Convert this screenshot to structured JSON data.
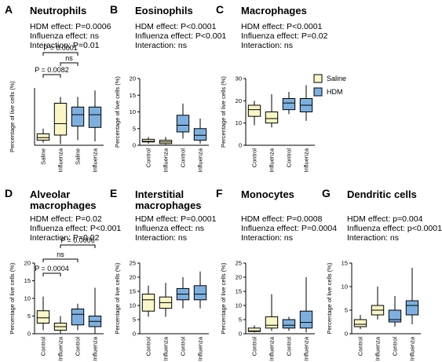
{
  "legend": [
    {
      "name": "Saline",
      "color": "#faf6c6"
    },
    {
      "name": "HDM",
      "color": "#7db0e0"
    }
  ],
  "chart_data": [
    {
      "type": "box",
      "letter": "A",
      "title": "Neutrophils",
      "stats": [
        "HDM effect: P=0.0006",
        "Influenza effect: ns",
        "Interaction: P=0.01"
      ],
      "ylabel": "Percentage of live cells (%)",
      "categories": [
        "Saline",
        "Influenza",
        "Saline",
        "Influenza"
      ],
      "colors": [
        "#faf6c6",
        "#faf6c6",
        "#7db0e0",
        "#7db0e0"
      ],
      "ylim": [
        0,
        45
      ],
      "annotations": [
        "P = 0.0001",
        "ns",
        "P = 0.0082"
      ],
      "boxes": [
        {
          "min": 2,
          "q1": 4,
          "median": 6,
          "q3": 9,
          "max": 13
        },
        {
          "min": 1,
          "q1": 8,
          "median": 17,
          "q3": 33,
          "max": 38
        },
        {
          "min": 4,
          "q1": 15,
          "median": 24,
          "q3": 30,
          "max": 38
        },
        {
          "min": 3,
          "q1": 14,
          "median": 24,
          "q3": 30,
          "max": 43
        }
      ]
    },
    {
      "type": "box",
      "letter": "B",
      "title": "Eosinophils",
      "stats": [
        "HDM effect: P<0.0001",
        "Influenza effect: P<0.001",
        "Interaction: ns"
      ],
      "ylabel": "Percentage of live cells (%)",
      "categories": [
        "Control",
        "Influenza",
        "Control",
        "Influenza"
      ],
      "colors": [
        "#faf6c6",
        "#faf6c6",
        "#7db0e0",
        "#7db0e0"
      ],
      "ylim": [
        0,
        20
      ],
      "yticks": [
        0,
        5,
        10,
        15,
        20
      ],
      "boxes": [
        {
          "min": 0.5,
          "q1": 1,
          "median": 1.2,
          "q3": 1.8,
          "max": 2.5
        },
        {
          "min": 0.2,
          "q1": 0.5,
          "median": 1,
          "q3": 1.5,
          "max": 2.5
        },
        {
          "min": 2,
          "q1": 4,
          "median": 6,
          "q3": 9,
          "max": 12.5
        },
        {
          "min": 0.5,
          "q1": 1.5,
          "median": 3,
          "q3": 5,
          "max": 8
        }
      ]
    },
    {
      "type": "box",
      "letter": "C",
      "title": "Macrophages",
      "stats": [
        "HDM effect: P<0.0001",
        "Influenza effect: P=0.02",
        "Interaction: ns"
      ],
      "ylabel": "Percentage of live cells (%)",
      "categories": [
        "Control",
        "Influenza",
        "Control",
        "Influenza"
      ],
      "colors": [
        "#faf6c6",
        "#faf6c6",
        "#7db0e0",
        "#7db0e0"
      ],
      "ylim": [
        0,
        30
      ],
      "yticks": [
        0,
        10,
        20,
        30
      ],
      "boxes": [
        {
          "min": 9,
          "q1": 13,
          "median": 16,
          "q3": 18,
          "max": 20
        },
        {
          "min": 8,
          "q1": 10,
          "median": 12,
          "q3": 15,
          "max": 23
        },
        {
          "min": 14,
          "q1": 16,
          "median": 19,
          "q3": 21,
          "max": 24
        },
        {
          "min": 11,
          "q1": 15,
          "median": 18,
          "q3": 21,
          "max": 27
        }
      ]
    },
    {
      "type": "box",
      "letter": "D",
      "title": "Alveolar macrophages",
      "stats": [
        "HDM effect: P=0.02",
        "Influenza effect: P<0.001",
        "Interaction: P=0.02"
      ],
      "ylabel": "Percentage of live cells (%)",
      "categories": [
        "Control",
        "Influenza",
        "Control",
        "Influenza"
      ],
      "colors": [
        "#faf6c6",
        "#faf6c6",
        "#7db0e0",
        "#7db0e0"
      ],
      "ylim": [
        0,
        20
      ],
      "yticks": [
        0,
        5,
        10,
        15,
        20
      ],
      "annotations": [
        "P = 0.0006",
        "ns",
        "P = 0.0004"
      ],
      "boxes": [
        {
          "min": 1,
          "q1": 3,
          "median": 4.5,
          "q3": 6.5,
          "max": 10.5
        },
        {
          "min": 0,
          "q1": 1,
          "median": 2,
          "q3": 3,
          "max": 5
        },
        {
          "min": 1,
          "q1": 2.5,
          "median": 5.5,
          "q3": 7,
          "max": 8.5
        },
        {
          "min": 0,
          "q1": 2,
          "median": 3.5,
          "q3": 5,
          "max": 13
        }
      ]
    },
    {
      "type": "box",
      "letter": "E",
      "title": "Interstitial macrophages",
      "stats": [
        "HDM effect: P=0.0001",
        "Influenza effect: ns",
        "Interaction: ns"
      ],
      "ylabel": "Percentage of live cells (%)",
      "categories": [
        "Control",
        "Influenza",
        "Control",
        "Influenza"
      ],
      "colors": [
        "#faf6c6",
        "#faf6c6",
        "#7db0e0",
        "#7db0e0"
      ],
      "ylim": [
        0,
        25
      ],
      "yticks": [
        0,
        5,
        10,
        15,
        20,
        25
      ],
      "boxes": [
        {
          "min": 6,
          "q1": 8,
          "median": 12,
          "q3": 14,
          "max": 17
        },
        {
          "min": 6,
          "q1": 9,
          "median": 11,
          "q3": 13,
          "max": 18
        },
        {
          "min": 9,
          "q1": 12,
          "median": 14,
          "q3": 16,
          "max": 20
        },
        {
          "min": 9,
          "q1": 12,
          "median": 14,
          "q3": 17,
          "max": 22
        }
      ]
    },
    {
      "type": "box",
      "letter": "F",
      "title": "Monocytes",
      "stats": [
        "HDM effect: P=0.0008",
        "Influenza effect: P=0.0004",
        "Interaction: ns"
      ],
      "ylabel": "Percentage of live cells (%)",
      "categories": [
        "Control",
        "Influenza",
        "Control",
        "Influenza"
      ],
      "colors": [
        "#faf6c6",
        "#faf6c6",
        "#7db0e0",
        "#7db0e0"
      ],
      "ylim": [
        0,
        25
      ],
      "yticks": [
        0,
        5,
        10,
        15,
        20,
        25
      ],
      "boxes": [
        {
          "min": 0.5,
          "q1": 0.8,
          "median": 1,
          "q3": 2,
          "max": 3
        },
        {
          "min": 1,
          "q1": 2,
          "median": 3,
          "q3": 6,
          "max": 14
        },
        {
          "min": 1,
          "q1": 2,
          "median": 3,
          "q3": 5,
          "max": 6
        },
        {
          "min": 0.5,
          "q1": 2,
          "median": 4,
          "q3": 8,
          "max": 20
        }
      ]
    },
    {
      "type": "box",
      "letter": "G",
      "title": "Dendritic cells",
      "stats": [
        "HDM effect: p=0.004",
        "Influenza effect: p<0.0001",
        "Interaction: ns"
      ],
      "ylabel": "Percentage of live cells (%)",
      "categories": [
        "Control",
        "Influenza",
        "Control",
        "Influenza"
      ],
      "colors": [
        "#faf6c6",
        "#faf6c6",
        "#7db0e0",
        "#7db0e0"
      ],
      "ylim": [
        0,
        15
      ],
      "yticks": [
        0,
        5,
        10,
        15
      ],
      "boxes": [
        {
          "min": 1,
          "q1": 1.5,
          "median": 2,
          "q3": 3,
          "max": 4
        },
        {
          "min": 3,
          "q1": 4,
          "median": 5,
          "q3": 6,
          "max": 10
        },
        {
          "min": 1.5,
          "q1": 2.5,
          "median": 3,
          "q3": 5,
          "max": 8
        },
        {
          "min": 2,
          "q1": 4,
          "median": 6,
          "q3": 7,
          "max": 14
        }
      ]
    }
  ]
}
